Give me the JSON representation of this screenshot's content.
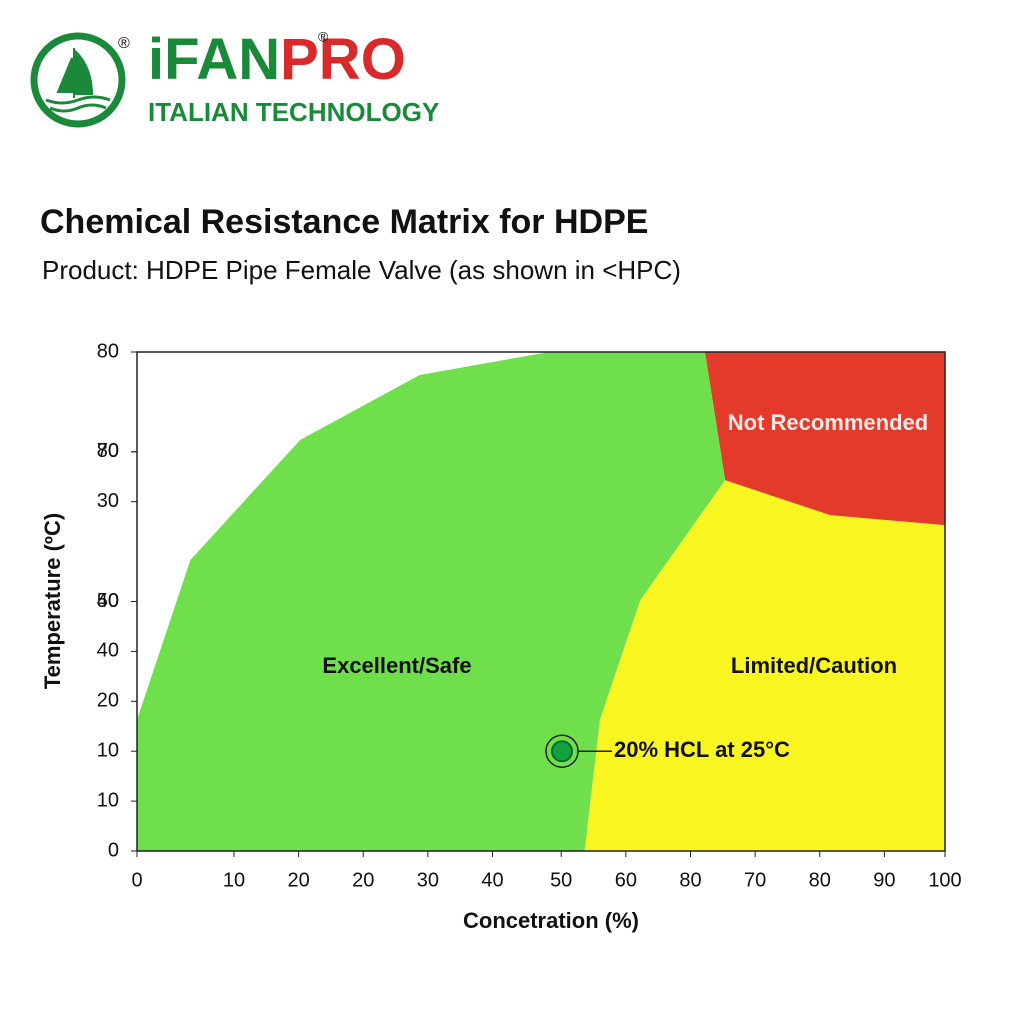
{
  "logo": {
    "brand_left": "iFAN",
    "brand_right": "PRO",
    "registered": "®",
    "tagline": "ITALIAN TECHNOLOGY"
  },
  "chart_data": {
    "type": "region",
    "title": "Chemical Resistance Matrix for HDPE",
    "subtitle": "Product: HDPE Pipe Female Valve (as shown in <HPC)",
    "x_label": "Concetration (%)",
    "y_label": "Temperature (ºC)",
    "xlim": [
      0,
      100
    ],
    "ylim": [
      0,
      100
    ],
    "xticks": [
      0,
      {
        "value": 12,
        "label": "10"
      },
      20,
      {
        "value": 28,
        "label": "20"
      },
      {
        "value": 36,
        "label": "30"
      },
      {
        "value": 44,
        "label": "40"
      },
      {
        "value": 52.5,
        "label": "50"
      },
      {
        "value": 60.5,
        "label": "60"
      },
      {
        "value": 68.5,
        "label": "80"
      },
      {
        "value": 76.5,
        "label": "70"
      },
      {
        "value": 84.5,
        "label": "80"
      },
      {
        "value": 92.5,
        "label": "90"
      },
      100
    ],
    "yticks": [
      0,
      10,
      {
        "value": 20,
        "label": "10"
      },
      {
        "value": 30,
        "label": "20"
      },
      40,
      {
        "value": 50,
        "label": "40"
      },
      50,
      {
        "value": 70,
        "label": "30"
      },
      {
        "value": 80,
        "label": "70"
      },
      80,
      {
        "value": 100,
        "label": "80"
      }
    ],
    "regions": [
      {
        "name": "Excellent/Safe",
        "color": "#6fe04c",
        "x": [
          0,
          0,
          6.6,
          20.2,
          35,
          51,
          70.3,
          72.8,
          62.3,
          57.3,
          55.4
        ],
        "y": [
          0,
          26.3,
          58.3,
          82.4,
          95.4,
          100,
          100,
          74.3,
          50.3,
          26.3,
          0
        ]
      },
      {
        "name": "Limited/Caution",
        "color": "#f8f521",
        "x": [
          55.4,
          57.3,
          62.3,
          72.8,
          85.8,
          100,
          100
        ],
        "y": [
          0,
          26.3,
          50.3,
          74.3,
          67.3,
          65.3,
          0
        ]
      },
      {
        "name": "Not Recommended",
        "color": "#e33a2c",
        "x": [
          70.3,
          100,
          100,
          85.8,
          72.8
        ],
        "y": [
          100,
          100,
          65.3,
          67.3,
          74.3
        ]
      }
    ],
    "point": {
      "x": 52.6,
      "y": 20,
      "label": "20% HCL at 25°C",
      "color": "#15a040"
    }
  }
}
